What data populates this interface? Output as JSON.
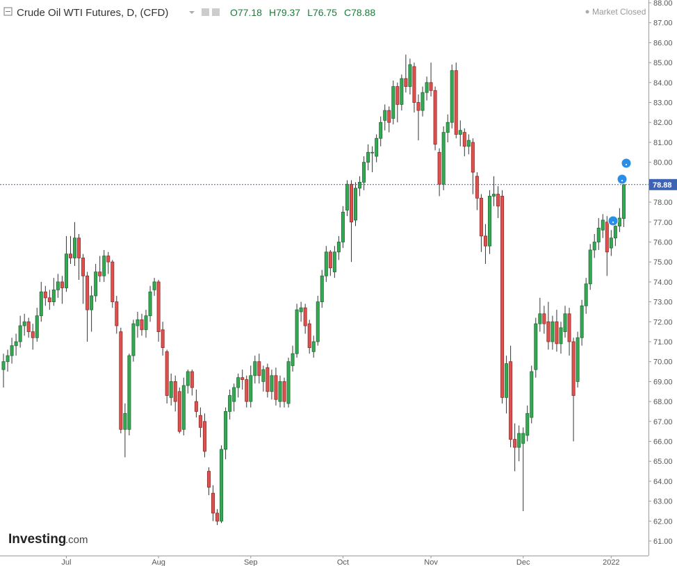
{
  "chart_data": {
    "type": "candlestick",
    "title": "Crude Oil WTI Futures, D, (CFD)",
    "ohlc_labels": [
      "O",
      "H",
      "L",
      "C"
    ],
    "status": "Market Closed",
    "logo": "Investing",
    "logo_suffix": ".com",
    "up_color": "#35a853",
    "down_color": "#e0514e",
    "xlim": [
      -0.83,
      153.9
    ],
    "xticks": [
      {
        "value": 15,
        "label": "Jul"
      },
      {
        "value": 37,
        "label": "Aug"
      },
      {
        "value": 59,
        "label": "Sep"
      },
      {
        "value": 81,
        "label": "Oct"
      },
      {
        "value": 102,
        "label": "Nov"
      },
      {
        "value": 124,
        "label": "Dec"
      },
      {
        "value": 145,
        "label": "2022"
      }
    ],
    "ylim": [
      60.27,
      88.14
    ],
    "yticks": [
      {
        "value": 61,
        "label": "61.00"
      },
      {
        "value": 62,
        "label": "62.00"
      },
      {
        "value": 63,
        "label": "63.00"
      },
      {
        "value": 64,
        "label": "64.00"
      },
      {
        "value": 65,
        "label": "65.00"
      },
      {
        "value": 66,
        "label": "66.00"
      },
      {
        "value": 67,
        "label": "67.00"
      },
      {
        "value": 68,
        "label": "68.00"
      },
      {
        "value": 69,
        "label": "69.00"
      },
      {
        "value": 70,
        "label": "70.00"
      },
      {
        "value": 71,
        "label": "71.00"
      },
      {
        "value": 72,
        "label": "72.00"
      },
      {
        "value": 73,
        "label": "73.00"
      },
      {
        "value": 74,
        "label": "74.00"
      },
      {
        "value": 75,
        "label": "75.00"
      },
      {
        "value": 76,
        "label": "76.00"
      },
      {
        "value": 77,
        "label": "77.00"
      },
      {
        "value": 78,
        "label": "78.00"
      },
      {
        "value": 79,
        "label": "79.00"
      },
      {
        "value": 80,
        "label": "80.00"
      },
      {
        "value": 81,
        "label": "81.00"
      },
      {
        "value": 82,
        "label": "82.00"
      },
      {
        "value": 83,
        "label": "83.00"
      },
      {
        "value": 84,
        "label": "84.00"
      },
      {
        "value": 85,
        "label": "85.00"
      },
      {
        "value": 86,
        "label": "86.00"
      },
      {
        "value": 87,
        "label": "87.00"
      },
      {
        "value": 88,
        "label": "88.00"
      }
    ],
    "grid": false,
    "candles": [
      {
        "o": 69.6,
        "h": 70.4,
        "l": 68.7,
        "c": 70.0
      },
      {
        "o": 70.0,
        "h": 70.6,
        "l": 69.5,
        "c": 70.3
      },
      {
        "o": 70.3,
        "h": 71.2,
        "l": 69.9,
        "c": 70.8
      },
      {
        "o": 70.8,
        "h": 71.4,
        "l": 70.3,
        "c": 71.0
      },
      {
        "o": 71.0,
        "h": 72.3,
        "l": 70.7,
        "c": 71.8
      },
      {
        "o": 71.8,
        "h": 72.4,
        "l": 71.3,
        "c": 72.0
      },
      {
        "o": 72.0,
        "h": 72.2,
        "l": 71.2,
        "c": 71.5
      },
      {
        "o": 71.5,
        "h": 71.9,
        "l": 70.6,
        "c": 71.2
      },
      {
        "o": 71.2,
        "h": 72.7,
        "l": 71.0,
        "c": 72.3
      },
      {
        "o": 72.3,
        "h": 74.0,
        "l": 72.0,
        "c": 73.5
      },
      {
        "o": 73.5,
        "h": 73.8,
        "l": 72.8,
        "c": 73.2
      },
      {
        "o": 73.2,
        "h": 73.6,
        "l": 72.6,
        "c": 73.0
      },
      {
        "o": 73.0,
        "h": 74.2,
        "l": 72.8,
        "c": 73.6
      },
      {
        "o": 73.6,
        "h": 74.4,
        "l": 73.2,
        "c": 74.0
      },
      {
        "o": 74.0,
        "h": 74.3,
        "l": 72.9,
        "c": 73.7
      },
      {
        "o": 73.7,
        "h": 76.3,
        "l": 73.5,
        "c": 75.4
      },
      {
        "o": 75.4,
        "h": 76.3,
        "l": 74.9,
        "c": 75.2
      },
      {
        "o": 75.2,
        "h": 77.0,
        "l": 74.8,
        "c": 76.2
      },
      {
        "o": 76.2,
        "h": 76.4,
        "l": 74.1,
        "c": 75.2
      },
      {
        "o": 75.2,
        "h": 75.4,
        "l": 72.9,
        "c": 74.3
      },
      {
        "o": 74.3,
        "h": 74.5,
        "l": 71.0,
        "c": 72.6
      },
      {
        "o": 72.6,
        "h": 73.8,
        "l": 71.5,
        "c": 73.3
      },
      {
        "o": 73.3,
        "h": 74.9,
        "l": 73.0,
        "c": 74.5
      },
      {
        "o": 74.5,
        "h": 75.3,
        "l": 74.0,
        "c": 74.3
      },
      {
        "o": 74.3,
        "h": 75.6,
        "l": 74.0,
        "c": 75.3
      },
      {
        "o": 75.3,
        "h": 75.5,
        "l": 74.4,
        "c": 75.0
      },
      {
        "o": 75.0,
        "h": 75.1,
        "l": 72.7,
        "c": 73.0
      },
      {
        "o": 73.0,
        "h": 73.3,
        "l": 71.4,
        "c": 71.8
      },
      {
        "o": 71.5,
        "h": 71.7,
        "l": 66.4,
        "c": 66.6
      },
      {
        "o": 66.6,
        "h": 67.9,
        "l": 65.2,
        "c": 67.4
      },
      {
        "o": 66.6,
        "h": 70.4,
        "l": 66.3,
        "c": 70.3
      },
      {
        "o": 70.3,
        "h": 72.1,
        "l": 70.0,
        "c": 71.9
      },
      {
        "o": 71.8,
        "h": 72.5,
        "l": 71.2,
        "c": 72.1
      },
      {
        "o": 72.1,
        "h": 72.4,
        "l": 71.3,
        "c": 71.6
      },
      {
        "o": 71.6,
        "h": 72.6,
        "l": 71.2,
        "c": 72.3
      },
      {
        "o": 72.3,
        "h": 73.8,
        "l": 72.0,
        "c": 73.5
      },
      {
        "o": 73.6,
        "h": 74.2,
        "l": 73.3,
        "c": 74.0
      },
      {
        "o": 74.0,
        "h": 74.1,
        "l": 71.0,
        "c": 71.5
      },
      {
        "o": 71.6,
        "h": 72.0,
        "l": 70.3,
        "c": 70.7
      },
      {
        "o": 70.5,
        "h": 70.6,
        "l": 67.9,
        "c": 68.3
      },
      {
        "o": 68.2,
        "h": 69.4,
        "l": 67.8,
        "c": 69.0
      },
      {
        "o": 69.0,
        "h": 69.3,
        "l": 67.5,
        "c": 68.0
      },
      {
        "o": 68.5,
        "h": 68.7,
        "l": 66.4,
        "c": 66.5
      },
      {
        "o": 66.6,
        "h": 69.2,
        "l": 66.3,
        "c": 68.8
      },
      {
        "o": 68.8,
        "h": 69.6,
        "l": 68.4,
        "c": 69.5
      },
      {
        "o": 69.5,
        "h": 69.6,
        "l": 68.3,
        "c": 68.7
      },
      {
        "o": 68.0,
        "h": 68.6,
        "l": 67.2,
        "c": 67.5
      },
      {
        "o": 67.3,
        "h": 67.7,
        "l": 66.2,
        "c": 66.7
      },
      {
        "o": 67.0,
        "h": 67.4,
        "l": 65.2,
        "c": 65.5
      },
      {
        "o": 64.5,
        "h": 64.7,
        "l": 63.3,
        "c": 63.7
      },
      {
        "o": 63.4,
        "h": 63.8,
        "l": 62.0,
        "c": 62.4
      },
      {
        "o": 62.4,
        "h": 62.6,
        "l": 61.8,
        "c": 62.0
      },
      {
        "o": 62.0,
        "h": 65.8,
        "l": 61.9,
        "c": 65.6
      },
      {
        "o": 65.6,
        "h": 67.7,
        "l": 65.1,
        "c": 67.5
      },
      {
        "o": 67.5,
        "h": 68.6,
        "l": 67.1,
        "c": 68.3
      },
      {
        "o": 68.0,
        "h": 68.9,
        "l": 67.5,
        "c": 68.7
      },
      {
        "o": 68.7,
        "h": 69.4,
        "l": 68.2,
        "c": 69.2
      },
      {
        "o": 69.2,
        "h": 69.6,
        "l": 68.6,
        "c": 69.1
      },
      {
        "o": 69.1,
        "h": 69.3,
        "l": 67.7,
        "c": 68.0
      },
      {
        "o": 68.0,
        "h": 69.8,
        "l": 67.7,
        "c": 69.3
      },
      {
        "o": 69.3,
        "h": 70.3,
        "l": 68.9,
        "c": 70.0
      },
      {
        "o": 70.0,
        "h": 70.4,
        "l": 68.9,
        "c": 69.3
      },
      {
        "o": 69.0,
        "h": 69.8,
        "l": 68.5,
        "c": 69.6
      },
      {
        "o": 69.7,
        "h": 69.9,
        "l": 68.2,
        "c": 68.5
      },
      {
        "o": 68.5,
        "h": 69.6,
        "l": 68.1,
        "c": 69.3
      },
      {
        "o": 69.3,
        "h": 69.7,
        "l": 67.8,
        "c": 68.1
      },
      {
        "o": 68.0,
        "h": 69.3,
        "l": 67.7,
        "c": 69.0
      },
      {
        "o": 69.0,
        "h": 69.2,
        "l": 67.7,
        "c": 68.0
      },
      {
        "o": 67.9,
        "h": 70.2,
        "l": 67.7,
        "c": 70.0
      },
      {
        "o": 69.8,
        "h": 70.8,
        "l": 69.5,
        "c": 70.4
      },
      {
        "o": 70.4,
        "h": 72.9,
        "l": 70.2,
        "c": 72.6
      },
      {
        "o": 72.5,
        "h": 73.0,
        "l": 72.0,
        "c": 72.7
      },
      {
        "o": 72.7,
        "h": 72.9,
        "l": 71.4,
        "c": 71.8
      },
      {
        "o": 71.9,
        "h": 72.1,
        "l": 70.4,
        "c": 70.7
      },
      {
        "o": 70.5,
        "h": 71.3,
        "l": 70.2,
        "c": 71.0
      },
      {
        "o": 71.0,
        "h": 73.3,
        "l": 70.8,
        "c": 73.0
      },
      {
        "o": 73.0,
        "h": 74.6,
        "l": 72.7,
        "c": 74.3
      },
      {
        "o": 74.3,
        "h": 75.8,
        "l": 74.0,
        "c": 75.5
      },
      {
        "o": 75.5,
        "h": 75.6,
        "l": 74.3,
        "c": 74.7
      },
      {
        "o": 74.5,
        "h": 75.8,
        "l": 74.2,
        "c": 75.5
      },
      {
        "o": 75.5,
        "h": 76.3,
        "l": 75.1,
        "c": 76.0
      },
      {
        "o": 76.0,
        "h": 77.8,
        "l": 75.7,
        "c": 77.5
      },
      {
        "o": 77.6,
        "h": 79.1,
        "l": 77.3,
        "c": 78.9
      },
      {
        "o": 78.9,
        "h": 79.1,
        "l": 75.0,
        "c": 77.0
      },
      {
        "o": 77.1,
        "h": 79.0,
        "l": 76.8,
        "c": 78.7
      },
      {
        "o": 78.7,
        "h": 79.3,
        "l": 78.3,
        "c": 79.0
      },
      {
        "o": 79.0,
        "h": 80.3,
        "l": 78.6,
        "c": 80.0
      },
      {
        "o": 80.0,
        "h": 80.9,
        "l": 79.6,
        "c": 80.5
      },
      {
        "o": 80.5,
        "h": 80.8,
        "l": 79.5,
        "c": 80.5
      },
      {
        "o": 80.3,
        "h": 81.4,
        "l": 80.0,
        "c": 81.2
      },
      {
        "o": 81.2,
        "h": 82.3,
        "l": 80.8,
        "c": 82.0
      },
      {
        "o": 82.1,
        "h": 82.9,
        "l": 81.6,
        "c": 82.6
      },
      {
        "o": 82.6,
        "h": 82.8,
        "l": 81.5,
        "c": 82.0
      },
      {
        "o": 82.2,
        "h": 84.1,
        "l": 81.9,
        "c": 83.8
      },
      {
        "o": 83.8,
        "h": 84.0,
        "l": 82.0,
        "c": 82.9
      },
      {
        "o": 82.9,
        "h": 84.4,
        "l": 82.6,
        "c": 84.2
      },
      {
        "o": 84.2,
        "h": 85.4,
        "l": 83.5,
        "c": 83.8
      },
      {
        "o": 83.8,
        "h": 85.2,
        "l": 83.4,
        "c": 84.9
      },
      {
        "o": 84.8,
        "h": 85.0,
        "l": 82.5,
        "c": 83.0
      },
      {
        "o": 83.0,
        "h": 83.4,
        "l": 81.1,
        "c": 82.6
      },
      {
        "o": 82.6,
        "h": 83.8,
        "l": 82.3,
        "c": 83.5
      },
      {
        "o": 83.5,
        "h": 84.3,
        "l": 83.1,
        "c": 84.0
      },
      {
        "o": 84.0,
        "h": 85.0,
        "l": 83.3,
        "c": 83.6
      },
      {
        "o": 83.6,
        "h": 83.8,
        "l": 80.6,
        "c": 80.9
      },
      {
        "o": 80.5,
        "h": 80.7,
        "l": 78.3,
        "c": 78.9
      },
      {
        "o": 78.9,
        "h": 81.8,
        "l": 78.6,
        "c": 81.5
      },
      {
        "o": 81.5,
        "h": 82.4,
        "l": 81.0,
        "c": 82.0
      },
      {
        "o": 82.0,
        "h": 84.9,
        "l": 81.7,
        "c": 84.6
      },
      {
        "o": 84.6,
        "h": 85.0,
        "l": 81.2,
        "c": 81.4
      },
      {
        "o": 81.4,
        "h": 82.1,
        "l": 80.8,
        "c": 81.6
      },
      {
        "o": 81.5,
        "h": 81.7,
        "l": 80.3,
        "c": 80.8
      },
      {
        "o": 80.8,
        "h": 81.4,
        "l": 80.4,
        "c": 81.1
      },
      {
        "o": 81.0,
        "h": 81.2,
        "l": 78.4,
        "c": 79.5
      },
      {
        "o": 79.3,
        "h": 79.5,
        "l": 77.6,
        "c": 78.2
      },
      {
        "o": 78.2,
        "h": 78.4,
        "l": 75.5,
        "c": 76.3
      },
      {
        "o": 76.3,
        "h": 76.9,
        "l": 74.9,
        "c": 75.8
      },
      {
        "o": 75.8,
        "h": 78.6,
        "l": 75.4,
        "c": 78.3
      },
      {
        "o": 78.3,
        "h": 79.3,
        "l": 77.8,
        "c": 78.4
      },
      {
        "o": 78.4,
        "h": 78.8,
        "l": 77.2,
        "c": 77.8
      },
      {
        "o": 78.3,
        "h": 78.6,
        "l": 67.9,
        "c": 68.2
      },
      {
        "o": 68.2,
        "h": 70.3,
        "l": 67.4,
        "c": 69.9
      },
      {
        "o": 70.0,
        "h": 70.8,
        "l": 65.7,
        "c": 66.1
      },
      {
        "o": 66.1,
        "h": 66.9,
        "l": 64.5,
        "c": 65.7
      },
      {
        "o": 65.7,
        "h": 66.8,
        "l": 65.0,
        "c": 66.4
      },
      {
        "o": 65.9,
        "h": 66.7,
        "l": 62.5,
        "c": 66.4
      },
      {
        "o": 66.3,
        "h": 67.8,
        "l": 66.0,
        "c": 67.4
      },
      {
        "o": 67.2,
        "h": 69.8,
        "l": 66.9,
        "c": 69.5
      },
      {
        "o": 69.6,
        "h": 72.2,
        "l": 69.2,
        "c": 71.9
      },
      {
        "o": 71.9,
        "h": 73.2,
        "l": 71.5,
        "c": 72.4
      },
      {
        "o": 72.4,
        "h": 72.8,
        "l": 71.4,
        "c": 71.9
      },
      {
        "o": 72.0,
        "h": 73.0,
        "l": 70.6,
        "c": 71.0
      },
      {
        "o": 71.0,
        "h": 72.3,
        "l": 70.6,
        "c": 72.0
      },
      {
        "o": 72.0,
        "h": 72.6,
        "l": 70.5,
        "c": 70.9
      },
      {
        "o": 70.9,
        "h": 72.0,
        "l": 70.4,
        "c": 71.7
      },
      {
        "o": 71.5,
        "h": 72.8,
        "l": 71.2,
        "c": 72.4
      },
      {
        "o": 72.4,
        "h": 72.7,
        "l": 70.3,
        "c": 71.0
      },
      {
        "o": 71.0,
        "h": 71.2,
        "l": 66.0,
        "c": 68.3
      },
      {
        "o": 69.0,
        "h": 71.5,
        "l": 68.7,
        "c": 71.2
      },
      {
        "o": 71.2,
        "h": 73.1,
        "l": 70.8,
        "c": 72.8
      },
      {
        "o": 72.8,
        "h": 74.2,
        "l": 72.4,
        "c": 73.9
      },
      {
        "o": 73.9,
        "h": 75.9,
        "l": 73.6,
        "c": 75.6
      },
      {
        "o": 75.6,
        "h": 76.4,
        "l": 75.2,
        "c": 76.0
      },
      {
        "o": 76.0,
        "h": 77.2,
        "l": 75.6,
        "c": 76.7
      },
      {
        "o": 76.6,
        "h": 77.4,
        "l": 76.2,
        "c": 77.1
      },
      {
        "o": 77.0,
        "h": 77.3,
        "l": 74.3,
        "c": 75.5
      },
      {
        "o": 75.7,
        "h": 76.6,
        "l": 75.3,
        "c": 76.2
      },
      {
        "o": 76.2,
        "h": 77.2,
        "l": 75.8,
        "c": 76.8
      },
      {
        "o": 76.8,
        "h": 77.7,
        "l": 76.5,
        "c": 77.2
      },
      {
        "o": 77.18,
        "h": 79.37,
        "l": 76.75,
        "c": 78.88
      }
    ]
  }
}
